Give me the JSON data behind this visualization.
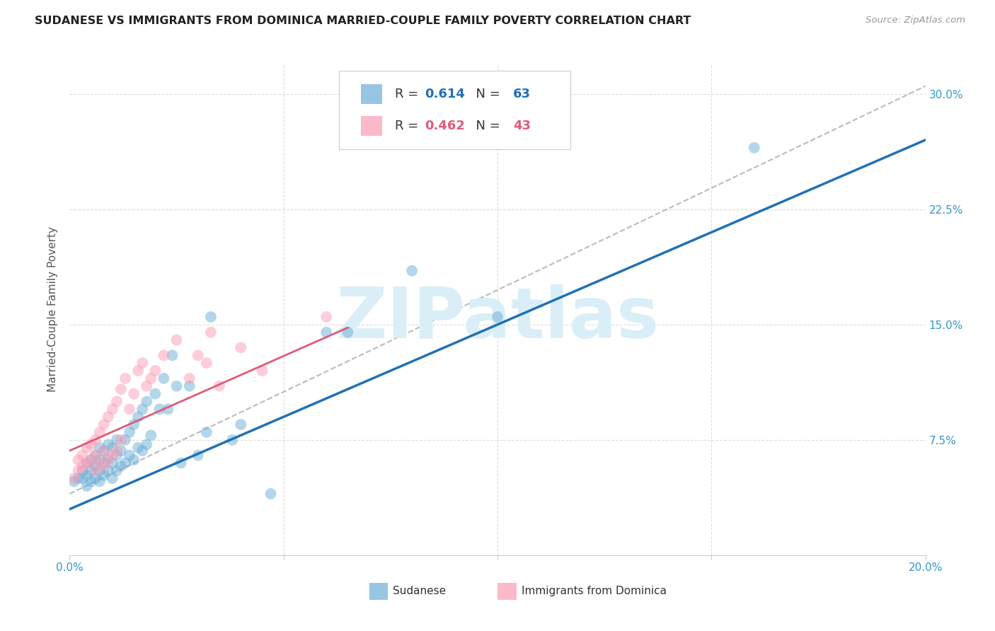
{
  "title": "SUDANESE VS IMMIGRANTS FROM DOMINICA MARRIED-COUPLE FAMILY POVERTY CORRELATION CHART",
  "source": "Source: ZipAtlas.com",
  "ylabel": "Married-Couple Family Poverty",
  "xlim": [
    0.0,
    0.2
  ],
  "ylim": [
    0.0,
    0.32
  ],
  "xticks": [
    0.0,
    0.05,
    0.1,
    0.15,
    0.2
  ],
  "yticks": [
    0.0,
    0.075,
    0.15,
    0.225,
    0.3
  ],
  "yticklabels": [
    "",
    "7.5%",
    "15.0%",
    "22.5%",
    "30.0%"
  ],
  "blue_color": "#6baed6",
  "pink_color": "#fc9cb4",
  "blue_line_color": "#2171b5",
  "pink_line_color": "#e05a7a",
  "gray_line_color": "#bbbbbb",
  "blue_R": 0.614,
  "blue_N": 63,
  "pink_R": 0.462,
  "pink_N": 43,
  "watermark_text": "ZIPatlas",
  "watermark_color": "#daeef8",
  "blue_label": "Sudanese",
  "pink_label": "Immigrants from Dominica",
  "blue_points_x": [
    0.001,
    0.002,
    0.003,
    0.003,
    0.004,
    0.004,
    0.004,
    0.005,
    0.005,
    0.005,
    0.006,
    0.006,
    0.006,
    0.007,
    0.007,
    0.007,
    0.007,
    0.008,
    0.008,
    0.008,
    0.009,
    0.009,
    0.009,
    0.01,
    0.01,
    0.01,
    0.011,
    0.011,
    0.011,
    0.012,
    0.012,
    0.013,
    0.013,
    0.014,
    0.014,
    0.015,
    0.015,
    0.016,
    0.016,
    0.017,
    0.017,
    0.018,
    0.018,
    0.019,
    0.02,
    0.021,
    0.022,
    0.023,
    0.024,
    0.025,
    0.026,
    0.028,
    0.03,
    0.032,
    0.033,
    0.038,
    0.04,
    0.047,
    0.06,
    0.065,
    0.08,
    0.1,
    0.16
  ],
  "blue_points_y": [
    0.048,
    0.05,
    0.05,
    0.055,
    0.045,
    0.052,
    0.06,
    0.048,
    0.055,
    0.062,
    0.05,
    0.058,
    0.065,
    0.048,
    0.055,
    0.062,
    0.07,
    0.052,
    0.06,
    0.068,
    0.055,
    0.063,
    0.072,
    0.05,
    0.06,
    0.07,
    0.055,
    0.065,
    0.075,
    0.058,
    0.068,
    0.06,
    0.075,
    0.065,
    0.08,
    0.062,
    0.085,
    0.07,
    0.09,
    0.068,
    0.095,
    0.072,
    0.1,
    0.078,
    0.105,
    0.095,
    0.115,
    0.095,
    0.13,
    0.11,
    0.06,
    0.11,
    0.065,
    0.08,
    0.155,
    0.075,
    0.085,
    0.04,
    0.145,
    0.145,
    0.185,
    0.155,
    0.265
  ],
  "pink_points_x": [
    0.001,
    0.002,
    0.002,
    0.003,
    0.003,
    0.004,
    0.004,
    0.005,
    0.005,
    0.006,
    0.006,
    0.006,
    0.007,
    0.007,
    0.008,
    0.008,
    0.008,
    0.009,
    0.009,
    0.01,
    0.01,
    0.011,
    0.011,
    0.012,
    0.012,
    0.013,
    0.014,
    0.015,
    0.016,
    0.017,
    0.018,
    0.019,
    0.02,
    0.022,
    0.025,
    0.028,
    0.03,
    0.032,
    0.033,
    0.035,
    0.04,
    0.045,
    0.06
  ],
  "pink_points_y": [
    0.05,
    0.055,
    0.062,
    0.058,
    0.065,
    0.06,
    0.07,
    0.062,
    0.072,
    0.055,
    0.065,
    0.075,
    0.06,
    0.08,
    0.058,
    0.068,
    0.085,
    0.062,
    0.09,
    0.065,
    0.095,
    0.068,
    0.1,
    0.075,
    0.108,
    0.115,
    0.095,
    0.105,
    0.12,
    0.125,
    0.11,
    0.115,
    0.12,
    0.13,
    0.14,
    0.115,
    0.13,
    0.125,
    0.145,
    0.11,
    0.135,
    0.12,
    0.155
  ],
  "blue_line_x0": 0.0,
  "blue_line_y0": 0.03,
  "blue_line_x1": 0.2,
  "blue_line_y1": 0.27,
  "pink_line_x0": 0.0,
  "pink_line_y0": 0.068,
  "pink_line_x1": 0.065,
  "pink_line_y1": 0.148,
  "gray_line_x0": 0.0,
  "gray_line_y0": 0.04,
  "gray_line_x1": 0.2,
  "gray_line_y1": 0.305
}
